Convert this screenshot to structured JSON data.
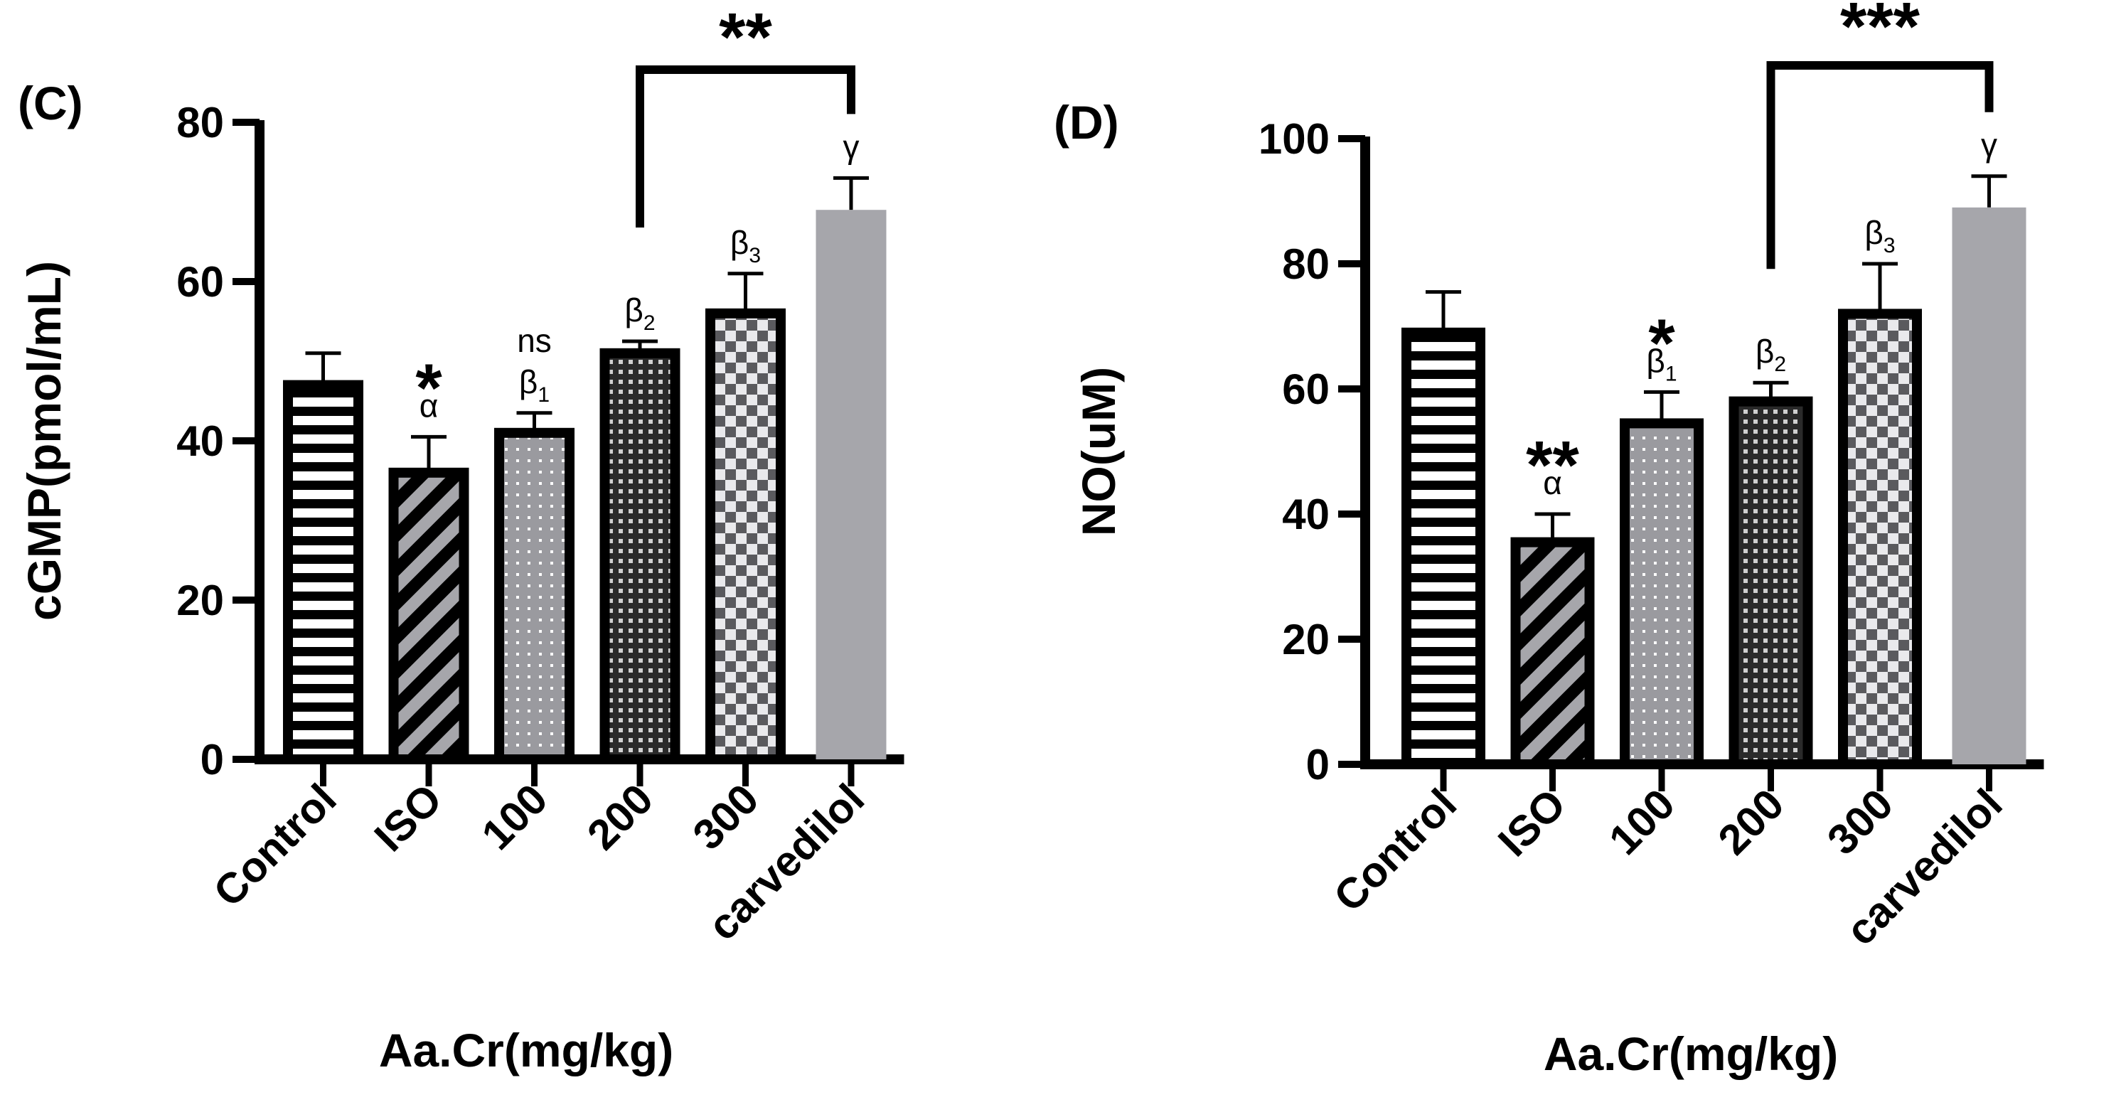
{
  "chart_data": [
    {
      "type": "bar",
      "panel_label": "(C)",
      "categories": [
        "Control",
        "ISO",
        "100",
        "200",
        "300",
        "carvedilol"
      ],
      "values": [
        47,
        36,
        41,
        51,
        56,
        69
      ],
      "errors": [
        4,
        4.5,
        2.5,
        1.5,
        5,
        4
      ],
      "ylabel": "cGMP(pmol/mL)",
      "xlabel": "Aa.Cr(mg/kg)",
      "ylim": [
        0,
        80
      ],
      "yticks": [
        0,
        20,
        40,
        60,
        80
      ],
      "ytick_labels": [
        "0",
        "20",
        "40",
        "60",
        "80"
      ],
      "patterns": [
        "hstripe",
        "diagonal",
        "dots",
        "smallgrid",
        "checker",
        "solid"
      ],
      "annotations": [
        {
          "category": "ISO",
          "star": "*",
          "base": "α",
          "sub": ""
        },
        {
          "category": "100",
          "star": "",
          "base": "β",
          "sub": "1",
          "extra": "ns"
        },
        {
          "category": "200",
          "star": "",
          "base": "β",
          "sub": "2"
        },
        {
          "category": "300",
          "star": "",
          "base": "β",
          "sub": "3"
        },
        {
          "category": "carvedilol",
          "star": "",
          "base": "γ",
          "sub": ""
        }
      ],
      "bracket": {
        "from": "200",
        "to": "carvedilol",
        "label": "**"
      }
    },
    {
      "type": "bar",
      "panel_label": "(D)",
      "categories": [
        "Control",
        "ISO",
        "100",
        "200",
        "300",
        "carvedilol"
      ],
      "values": [
        69,
        35.5,
        54.5,
        58,
        72,
        89
      ],
      "errors": [
        6.5,
        4.5,
        5,
        3,
        8,
        5
      ],
      "ylabel": "NO(uM)",
      "xlabel": "Aa.Cr(mg/kg)",
      "ylim": [
        0,
        100
      ],
      "yticks": [
        0,
        20,
        40,
        60,
        80,
        100
      ],
      "ytick_labels": [
        "0",
        "20",
        "40",
        "60",
        "80",
        "100"
      ],
      "patterns": [
        "hstripe",
        "diagonal",
        "dots",
        "smallgrid",
        "checker",
        "solid"
      ],
      "annotations": [
        {
          "category": "ISO",
          "star": "**",
          "base": "α",
          "sub": ""
        },
        {
          "category": "100",
          "star": "*",
          "base": "β",
          "sub": "1"
        },
        {
          "category": "200",
          "star": "",
          "base": "β",
          "sub": "2"
        },
        {
          "category": "300",
          "star": "",
          "base": "β",
          "sub": "3"
        },
        {
          "category": "carvedilol",
          "star": "",
          "base": "γ",
          "sub": ""
        }
      ],
      "bracket": {
        "from": "200",
        "to": "carvedilol",
        "label": "***"
      }
    }
  ],
  "colors": {
    "ink": "#000000",
    "gray_fill": "#a6a6ab",
    "white": "#ffffff"
  }
}
